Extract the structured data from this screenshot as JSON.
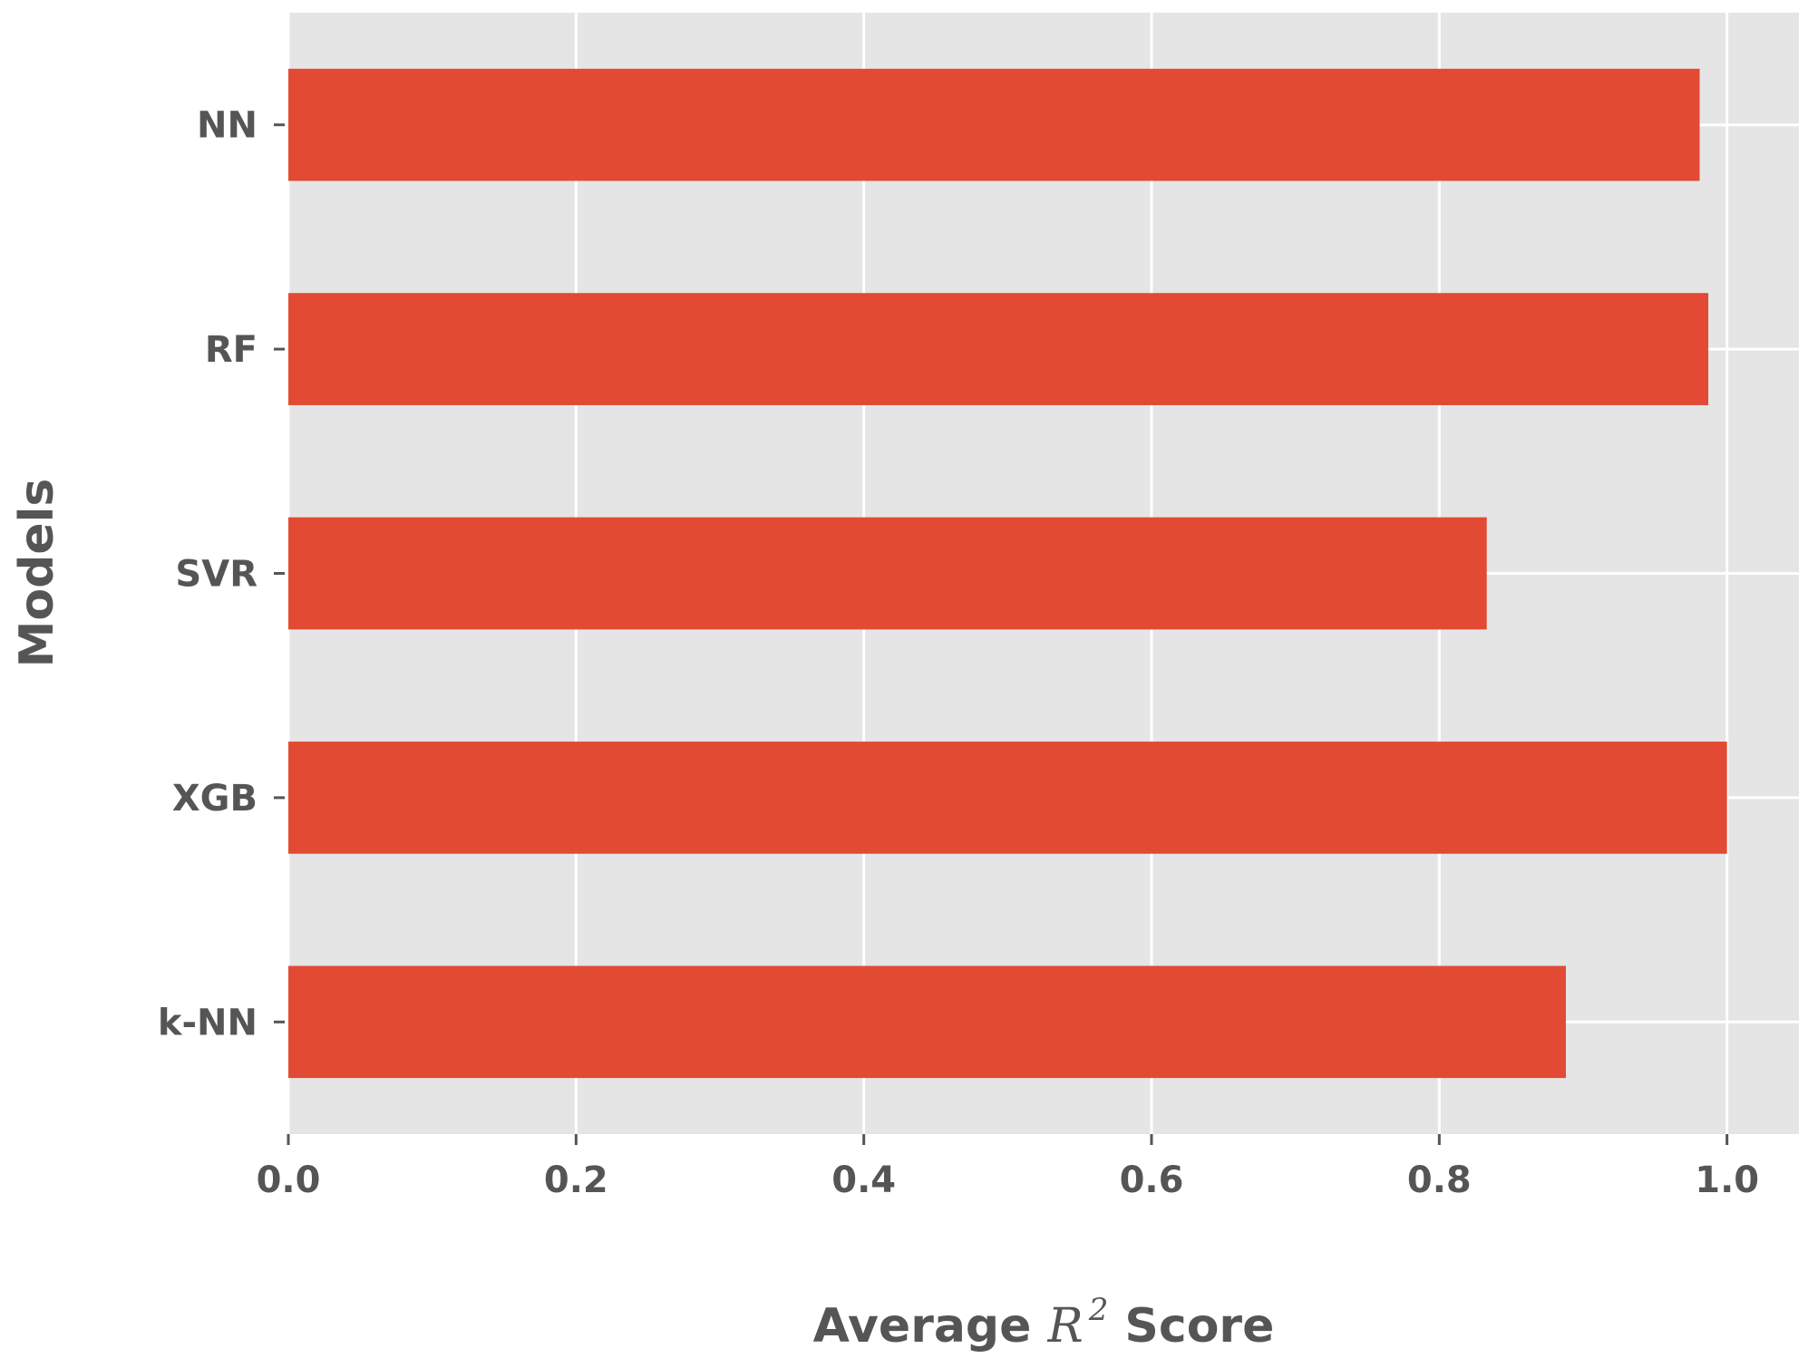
{
  "chart_data": {
    "type": "bar",
    "orientation": "horizontal",
    "categories": [
      "k-NN",
      "XGB",
      "SVR",
      "RF",
      "NN"
    ],
    "values": [
      0.888,
      1.0,
      0.833,
      0.987,
      0.981
    ],
    "xlabel": {
      "prefix": "Average ",
      "symbol": "R",
      "superscript": "2",
      "suffix": " Score"
    },
    "ylabel": "Models",
    "xlim": [
      0,
      1.05
    ],
    "xticks": [
      {
        "value": 0.0,
        "label": "0.0"
      },
      {
        "value": 0.2,
        "label": "0.2"
      },
      {
        "value": 0.4,
        "label": "0.4"
      },
      {
        "value": 0.6,
        "label": "0.6"
      },
      {
        "value": 0.8,
        "label": "0.8"
      },
      {
        "value": 1.0,
        "label": "1.0"
      }
    ],
    "grid": true,
    "bar_color": "#E24A33",
    "background_color": "#E5E5E5",
    "grid_color": "#FFFFFF",
    "text_color": "#555555"
  }
}
